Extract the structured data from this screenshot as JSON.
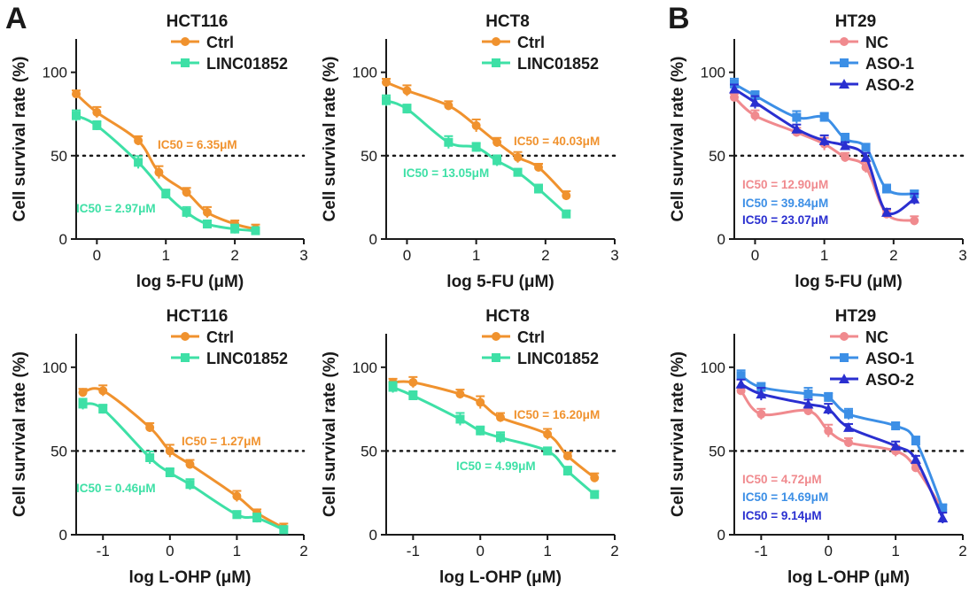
{
  "panel_labels": {
    "a": "A",
    "b": "B"
  },
  "chart_data": [
    {
      "type": "scatter",
      "title": "HCT116",
      "xlabel": "log 5-FU (μM)",
      "ylabel": "Cell survival rate (%)",
      "xlim": [
        -0.3,
        3
      ],
      "ylim": [
        0,
        120
      ],
      "xticks": [
        0,
        1,
        2,
        3
      ],
      "yticks": [
        0,
        50,
        100
      ],
      "reference_line_y": 50,
      "legend_position": "top-right",
      "series": [
        {
          "name": "Ctrl",
          "color": "#f0922e",
          "marker": "circle",
          "x": [
            -0.3,
            0,
            0.6,
            0.9,
            1.3,
            1.6,
            2,
            2.3
          ],
          "y": [
            87,
            76,
            59,
            40,
            28,
            16,
            9,
            6
          ],
          "ic50_label": "IC50 = 6.35μM"
        },
        {
          "name": "LINC01852",
          "color": "#3ee0a6",
          "marker": "square",
          "x": [
            -0.3,
            0,
            0.6,
            1,
            1.3,
            1.6,
            2,
            2.3
          ],
          "y": [
            74,
            68,
            46,
            27,
            16,
            9,
            6,
            5
          ],
          "ic50_label": "IC50 = 2.97μM"
        }
      ]
    },
    {
      "type": "scatter",
      "title": "HCT8",
      "xlabel": "log 5-FU (μM)",
      "ylabel": "Cell survival rate (%)",
      "xlim": [
        -0.3,
        3
      ],
      "ylim": [
        0,
        120
      ],
      "xticks": [
        0,
        1,
        2,
        3
      ],
      "yticks": [
        0,
        50,
        100
      ],
      "reference_line_y": 50,
      "legend_position": "top-right",
      "series": [
        {
          "name": "Ctrl",
          "color": "#f0922e",
          "marker": "circle",
          "x": [
            -0.3,
            0,
            0.6,
            1,
            1.3,
            1.6,
            1.9,
            2.3
          ],
          "y": [
            94,
            89,
            80,
            68,
            58,
            49,
            43,
            26
          ],
          "ic50_label": "IC50 = 40.03μM"
        },
        {
          "name": "LINC01852",
          "color": "#3ee0a6",
          "marker": "square",
          "x": [
            -0.3,
            0,
            0.6,
            1,
            1.3,
            1.6,
            1.9,
            2.3
          ],
          "y": [
            83,
            78,
            58,
            55,
            47,
            40,
            30,
            15
          ],
          "ic50_label": "IC50 = 13.05μM"
        }
      ]
    },
    {
      "type": "scatter",
      "title": "HT29",
      "xlabel": "log 5-FU (μM)",
      "ylabel": "Cell survival rate (%)",
      "xlim": [
        -0.3,
        3
      ],
      "ylim": [
        0,
        120
      ],
      "xticks": [
        0,
        1,
        2,
        3
      ],
      "yticks": [
        0,
        50,
        100
      ],
      "reference_line_y": 50,
      "legend_position": "top-right",
      "series": [
        {
          "name": "NC",
          "color": "#f08a8e",
          "marker": "circle",
          "x": [
            -0.3,
            0,
            0.6,
            1,
            1.3,
            1.6,
            1.9,
            2.3
          ],
          "y": [
            85,
            74,
            64,
            57,
            49,
            43,
            15,
            11
          ],
          "ic50_label": "IC50 = 12.90μM"
        },
        {
          "name": "ASO-1",
          "color": "#3c8fe6",
          "marker": "square",
          "x": [
            -0.3,
            0,
            0.6,
            1,
            1.3,
            1.6,
            1.9,
            2.3
          ],
          "y": [
            93,
            86,
            73,
            73,
            60,
            55,
            30,
            27
          ],
          "ic50_label": "IC50 = 39.84μM"
        },
        {
          "name": "ASO-2",
          "color": "#2a2fd0",
          "marker": "triangle",
          "x": [
            -0.3,
            0,
            0.6,
            1,
            1.3,
            1.6,
            1.9,
            2.3
          ],
          "y": [
            90,
            82,
            66,
            59,
            56,
            49,
            16,
            24
          ],
          "ic50_label": "IC50 = 23.07μM"
        }
      ]
    },
    {
      "type": "scatter",
      "title": "HCT116",
      "xlabel": "log L-OHP (μM)",
      "ylabel": "Cell survival rate (%)",
      "xlim": [
        -1.4,
        2
      ],
      "ylim": [
        0,
        120
      ],
      "xticks": [
        -1,
        0,
        1,
        2
      ],
      "yticks": [
        0,
        50,
        100
      ],
      "reference_line_y": 50,
      "legend_position": "top-right",
      "series": [
        {
          "name": "Ctrl",
          "color": "#f0922e",
          "marker": "circle",
          "x": [
            -1.3,
            -1,
            -0.3,
            0,
            0.3,
            1,
            1.3,
            1.7
          ],
          "y": [
            85,
            86,
            64,
            50,
            42,
            23,
            13,
            4
          ],
          "ic50_label": "IC50 = 1.27μM"
        },
        {
          "name": "LINC01852",
          "color": "#3ee0a6",
          "marker": "square",
          "x": [
            -1.3,
            -1,
            -0.3,
            0,
            0.3,
            1,
            1.3,
            1.7
          ],
          "y": [
            78,
            75,
            46,
            37,
            30,
            12,
            10,
            3
          ],
          "ic50_label": "IC50 = 0.46μM"
        }
      ]
    },
    {
      "type": "scatter",
      "title": "HCT8",
      "xlabel": "log L-OHP (μM)",
      "ylabel": "Cell survival rate (%)",
      "xlim": [
        -1.4,
        2
      ],
      "ylim": [
        0,
        120
      ],
      "xticks": [
        -1,
        0,
        1,
        2
      ],
      "yticks": [
        0,
        50,
        100
      ],
      "reference_line_y": 50,
      "legend_position": "top-right",
      "series": [
        {
          "name": "Ctrl",
          "color": "#f0922e",
          "marker": "circle",
          "x": [
            -1.3,
            -1,
            -0.3,
            0,
            0.3,
            1,
            1.3,
            1.7
          ],
          "y": [
            91,
            91,
            84,
            79,
            70,
            60,
            47,
            34
          ],
          "ic50_label": "IC50 = 16.20μM"
        },
        {
          "name": "LINC01852",
          "color": "#3ee0a6",
          "marker": "square",
          "x": [
            -1.3,
            -1,
            -0.3,
            0,
            0.3,
            1,
            1.3,
            1.7
          ],
          "y": [
            88,
            83,
            69,
            62,
            58,
            50,
            38,
            24
          ],
          "ic50_label": "IC50 = 4.99μM"
        }
      ]
    },
    {
      "type": "scatter",
      "title": "HT29",
      "xlabel": "log L-OHP (μM)",
      "ylabel": "Cell survival rate (%)",
      "xlim": [
        -1.4,
        2
      ],
      "ylim": [
        0,
        120
      ],
      "xticks": [
        -1,
        0,
        1,
        2
      ],
      "yticks": [
        0,
        50,
        100
      ],
      "reference_line_y": 50,
      "legend_position": "top-right",
      "series": [
        {
          "name": "NC",
          "color": "#f08a8e",
          "marker": "circle",
          "x": [
            -1.3,
            -1,
            -0.3,
            0,
            0.3,
            1,
            1.3,
            1.7
          ],
          "y": [
            86,
            72,
            74,
            62,
            55,
            50,
            40,
            15
          ],
          "ic50_label": "IC50 = 4.72μM"
        },
        {
          "name": "ASO-1",
          "color": "#3c8fe6",
          "marker": "square",
          "x": [
            -1.3,
            -1,
            -0.3,
            0,
            0.3,
            1,
            1.3,
            1.7
          ],
          "y": [
            95,
            88,
            84,
            82,
            72,
            65,
            56,
            16
          ],
          "ic50_label": "IC50 = 14.69μM"
        },
        {
          "name": "ASO-2",
          "color": "#2a2fd0",
          "marker": "triangle",
          "x": [
            -1.3,
            -1,
            -0.3,
            0,
            0.3,
            1,
            1.3,
            1.7
          ],
          "y": [
            90,
            84,
            78,
            75,
            64,
            53,
            45,
            10
          ],
          "ic50_label": "IC50 = 9.14μM"
        }
      ]
    }
  ]
}
